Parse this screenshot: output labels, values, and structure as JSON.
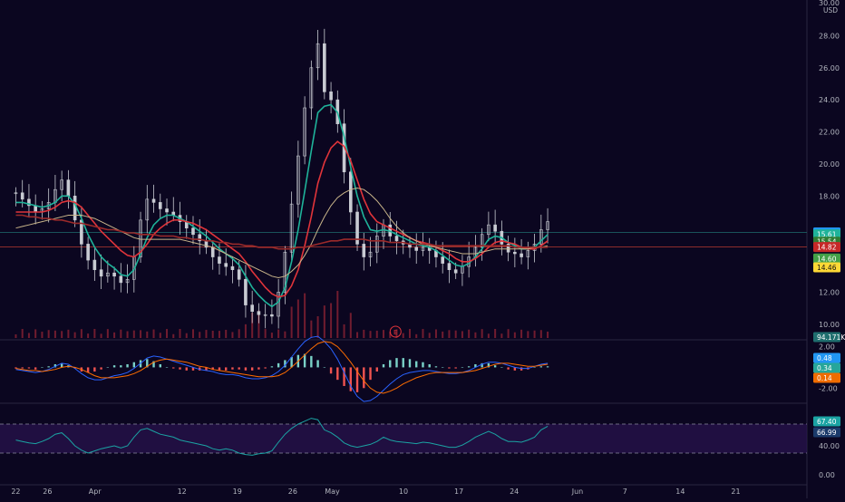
{
  "header": {
    "price_scale_top": "30.00",
    "currency": "USD"
  },
  "colors": {
    "background": "#0b0620",
    "axis_text": "#b2b5be",
    "candle_up": "#c8cbd2",
    "candle_down": "#c8cbd2",
    "ema_fast": "#1fb39a",
    "ema_slow": "#e0343a",
    "sma_long": "#c9b58a",
    "sma_red": "#9b2a2a",
    "volume": "#8a2233",
    "macd_line": "#2962ff",
    "signal_line": "#ff6d00",
    "hist_pos": "#7ad2c8",
    "hist_neg": "#ef5350",
    "rsi_line": "#1ba3a3",
    "rsi_band": "#2a1450"
  },
  "chart_data": [
    {
      "type": "line",
      "panel": "price",
      "yaxis_ticks": [
        "28.00",
        "26.00",
        "24.00",
        "22.00",
        "20.00",
        "18.00",
        "12.00",
        "10.00"
      ],
      "ylim": [
        9.2,
        30
      ],
      "x_labels": [
        "22",
        "26",
        "Apr",
        "12",
        "19",
        "26",
        "May",
        "10",
        "17",
        "24",
        "Jun",
        "7",
        "14",
        "21"
      ],
      "x_label_days": [
        -10,
        -6,
        0,
        11,
        18,
        25,
        30,
        39,
        46,
        53,
        61,
        67,
        74,
        81
      ],
      "xlim": [
        -12,
        90
      ],
      "series": [
        {
          "key": "close",
          "values": [
            18.2,
            17.8,
            17.4,
            17.0,
            17.2,
            17.6,
            18.4,
            19.0,
            18.0,
            16.5,
            15.0,
            14.0,
            13.4,
            13.0,
            13.2,
            13.0,
            12.6,
            12.8,
            14.2,
            16.5,
            17.8,
            17.6,
            17.2,
            17.0,
            16.8,
            16.4,
            16.0,
            15.6,
            15.2,
            14.8,
            14.2,
            13.8,
            13.6,
            13.4,
            12.8,
            11.2,
            10.8,
            10.6,
            10.6,
            10.5,
            12.0,
            14.5,
            17.5,
            20.5,
            23.5,
            26.0,
            27.5,
            24.5,
            24.0,
            22.5,
            19.5,
            17.0,
            15.0,
            14.2,
            14.5,
            15.5,
            16.2,
            15.5,
            15.2,
            15.0,
            14.8,
            14.6,
            14.8,
            14.6,
            14.2,
            13.8,
            13.4,
            13.2,
            13.6,
            14.2,
            14.8,
            15.6,
            16.2,
            15.8,
            15.0,
            14.5,
            14.4,
            14.2,
            14.6,
            15.0,
            15.9,
            16.4
          ]
        },
        {
          "key": "ema_fast",
          "values": [
            17.6,
            17.6,
            17.5,
            17.4,
            17.3,
            17.4,
            17.6,
            18.0,
            18.0,
            17.5,
            16.6,
            15.6,
            14.8,
            14.2,
            13.8,
            13.5,
            13.1,
            13.0,
            13.4,
            14.4,
            15.4,
            16.2,
            16.6,
            16.8,
            16.8,
            16.6,
            16.4,
            16.1,
            15.8,
            15.5,
            15.1,
            14.7,
            14.4,
            14.1,
            13.7,
            13.0,
            12.3,
            11.8,
            11.4,
            11.1,
            11.4,
            12.3,
            13.9,
            15.9,
            18.3,
            20.8,
            23.2,
            23.6,
            23.7,
            23.2,
            21.7,
            19.8,
            18.0,
            16.7,
            15.9,
            15.8,
            15.9,
            15.8,
            15.6,
            15.4,
            15.2,
            15.0,
            14.9,
            14.8,
            14.6,
            14.3,
            14.0,
            13.7,
            13.6,
            13.8,
            14.2,
            14.7,
            15.3,
            15.5,
            15.4,
            15.1,
            14.9,
            14.7,
            14.7,
            14.8,
            15.2,
            15.6
          ]
        },
        {
          "key": "ema_slow",
          "values": [
            17.0,
            17.0,
            17.0,
            17.0,
            17.0,
            17.1,
            17.3,
            17.6,
            17.7,
            17.6,
            17.3,
            16.8,
            16.3,
            15.8,
            15.4,
            15.0,
            14.6,
            14.3,
            14.2,
            14.5,
            15.0,
            15.6,
            16.0,
            16.3,
            16.5,
            16.5,
            16.4,
            16.3,
            16.1,
            15.9,
            15.6,
            15.3,
            15.0,
            14.7,
            14.4,
            13.9,
            13.3,
            12.8,
            12.3,
            11.9,
            11.7,
            11.8,
            12.4,
            13.4,
            14.9,
            16.7,
            18.8,
            20.1,
            21.0,
            21.4,
            21.1,
            20.2,
            19.0,
            17.8,
            16.9,
            16.4,
            16.2,
            16.0,
            15.8,
            15.6,
            15.4,
            15.2,
            15.1,
            15.0,
            14.8,
            14.6,
            14.4,
            14.1,
            13.9,
            13.9,
            14.1,
            14.4,
            14.8,
            15.1,
            15.2,
            15.1,
            15.0,
            14.8,
            14.7,
            14.7,
            14.9,
            15.2
          ]
        },
        {
          "key": "sma_long",
          "values": [
            16.0,
            16.1,
            16.2,
            16.3,
            16.4,
            16.5,
            16.6,
            16.7,
            16.8,
            16.8,
            16.8,
            16.7,
            16.6,
            16.4,
            16.2,
            16.0,
            15.8,
            15.6,
            15.4,
            15.3,
            15.3,
            15.3,
            15.3,
            15.3,
            15.3,
            15.3,
            15.2,
            15.1,
            15.0,
            14.9,
            14.8,
            14.6,
            14.4,
            14.2,
            14.0,
            13.8,
            13.6,
            13.4,
            13.2,
            13.0,
            12.9,
            13.0,
            13.3,
            13.7,
            14.3,
            15.0,
            15.9,
            16.7,
            17.4,
            17.9,
            18.2,
            18.4,
            18.5,
            18.4,
            18.1,
            17.7,
            17.2,
            16.6,
            16.1,
            15.7,
            15.4,
            15.2,
            15.0,
            14.9,
            14.8,
            14.7,
            14.6,
            14.5,
            14.4,
            14.4,
            14.4,
            14.5,
            14.6,
            14.7,
            14.7,
            14.7,
            14.7,
            14.7,
            14.7,
            14.8,
            14.8,
            14.9
          ]
        },
        {
          "key": "sma_red",
          "values": [
            16.8,
            16.8,
            16.7,
            16.7,
            16.6,
            16.6,
            16.5,
            16.5,
            16.4,
            16.3,
            16.3,
            16.2,
            16.1,
            16.0,
            15.9,
            15.9,
            15.8,
            15.7,
            15.7,
            15.6,
            15.6,
            15.6,
            15.5,
            15.5,
            15.5,
            15.4,
            15.4,
            15.3,
            15.3,
            15.2,
            15.2,
            15.1,
            15.1,
            15.0,
            15.0,
            14.9,
            14.9,
            14.8,
            14.8,
            14.8,
            14.7,
            14.7,
            14.7,
            14.8,
            14.8,
            14.9,
            15.0,
            15.1,
            15.2,
            15.2,
            15.3,
            15.3,
            15.3,
            15.3,
            15.2,
            15.2,
            15.2,
            15.1,
            15.1,
            15.1,
            15.0,
            15.0,
            15.0,
            15.0,
            14.9,
            14.9,
            14.9,
            14.9,
            14.9,
            14.9,
            14.9,
            14.9,
            14.9,
            14.9,
            14.9,
            14.9,
            14.8,
            14.8,
            14.8,
            14.8,
            14.8,
            14.8
          ]
        }
      ],
      "price_badges": [
        {
          "label": "15.73",
          "value": 15.73,
          "color": "#2196f3"
        },
        {
          "label": "15.61",
          "value": 15.61,
          "color": "#1fb39a"
        },
        {
          "label": "15.54",
          "value": 15.15,
          "color": "#2e7d32"
        },
        {
          "label": "14.82",
          "value": 14.82,
          "color": "#c62828"
        },
        {
          "label": "14.60",
          "value": 14.1,
          "color": "#43a047"
        },
        {
          "label": "14.46",
          "value": 13.55,
          "color": "#fdd835"
        }
      ],
      "horizontal_lines": [
        15.73,
        14.82
      ],
      "volume_label": "94.171K",
      "earnings_marker": "E",
      "earnings_day": 24
    },
    {
      "type": "line",
      "panel": "macd",
      "yaxis_ticks": [
        "2.00",
        "-2.00"
      ],
      "ylim": [
        -3.2,
        2.4
      ],
      "series": [
        {
          "key": "macd",
          "values": [
            -0.2,
            -0.3,
            -0.4,
            -0.5,
            -0.4,
            -0.2,
            0.1,
            0.4,
            0.3,
            -0.1,
            -0.6,
            -1.0,
            -1.2,
            -1.2,
            -1.0,
            -0.8,
            -0.7,
            -0.5,
            -0.1,
            0.4,
            0.9,
            1.1,
            1.0,
            0.8,
            0.6,
            0.4,
            0.2,
            0.0,
            -0.2,
            -0.3,
            -0.4,
            -0.6,
            -0.7,
            -0.7,
            -0.8,
            -1.0,
            -1.1,
            -1.1,
            -1.0,
            -0.8,
            -0.4,
            0.2,
            1.0,
            1.8,
            2.5,
            2.9,
            3.0,
            2.5,
            1.8,
            0.8,
            -0.5,
            -1.8,
            -2.8,
            -3.3,
            -3.2,
            -2.8,
            -2.2,
            -1.6,
            -1.1,
            -0.7,
            -0.5,
            -0.4,
            -0.3,
            -0.3,
            -0.4,
            -0.5,
            -0.6,
            -0.6,
            -0.5,
            -0.3,
            0.0,
            0.3,
            0.5,
            0.5,
            0.4,
            0.2,
            0.0,
            -0.1,
            -0.1,
            0.1,
            0.3,
            0.4
          ]
        },
        {
          "key": "signal",
          "values": [
            -0.1,
            -0.2,
            -0.3,
            -0.3,
            -0.4,
            -0.3,
            -0.2,
            0.0,
            0.1,
            0.0,
            -0.2,
            -0.5,
            -0.8,
            -1.0,
            -1.0,
            -1.0,
            -0.9,
            -0.8,
            -0.6,
            -0.3,
            0.1,
            0.5,
            0.7,
            0.8,
            0.7,
            0.6,
            0.5,
            0.3,
            0.1,
            0.0,
            -0.2,
            -0.3,
            -0.4,
            -0.5,
            -0.6,
            -0.7,
            -0.8,
            -0.9,
            -0.9,
            -0.9,
            -0.8,
            -0.5,
            0.0,
            0.6,
            1.2,
            1.8,
            2.3,
            2.5,
            2.4,
            2.0,
            1.3,
            0.5,
            -0.4,
            -1.3,
            -2.0,
            -2.4,
            -2.5,
            -2.3,
            -2.0,
            -1.6,
            -1.3,
            -1.0,
            -0.8,
            -0.6,
            -0.5,
            -0.5,
            -0.5,
            -0.5,
            -0.5,
            -0.4,
            -0.3,
            -0.1,
            0.1,
            0.3,
            0.4,
            0.4,
            0.3,
            0.2,
            0.1,
            0.1,
            0.2,
            0.3
          ]
        },
        {
          "key": "histogram",
          "values": [
            -0.1,
            -0.1,
            -0.1,
            -0.2,
            0.0,
            0.1,
            0.3,
            0.4,
            0.2,
            -0.1,
            -0.4,
            -0.5,
            -0.4,
            -0.2,
            0.0,
            0.2,
            0.2,
            0.3,
            0.5,
            0.7,
            0.8,
            0.6,
            0.3,
            0.0,
            -0.1,
            -0.2,
            -0.3,
            -0.3,
            -0.3,
            -0.3,
            -0.2,
            -0.3,
            -0.3,
            -0.2,
            -0.2,
            -0.3,
            -0.3,
            -0.2,
            -0.1,
            0.1,
            0.4,
            0.7,
            1.0,
            1.2,
            1.3,
            1.1,
            0.7,
            0.0,
            -0.6,
            -1.2,
            -1.8,
            -2.3,
            -2.4,
            -2.0,
            -1.2,
            -0.4,
            0.3,
            0.7,
            0.9,
            0.9,
            0.8,
            0.6,
            0.5,
            0.3,
            0.1,
            0.0,
            -0.1,
            -0.1,
            0.0,
            0.1,
            0.3,
            0.4,
            0.4,
            0.2,
            0.0,
            -0.2,
            -0.3,
            -0.3,
            -0.2,
            0.0,
            0.1,
            0.1
          ]
        }
      ],
      "badges": [
        {
          "label": "0.48",
          "color": "#2196f3"
        },
        {
          "label": "0.34",
          "color": "#26a69a"
        },
        {
          "label": "0.14",
          "color": "#ef6c00"
        }
      ]
    },
    {
      "type": "line",
      "panel": "rsi",
      "yaxis_ticks": [
        "40.00",
        "0.00"
      ],
      "ylim": [
        -10,
        95
      ],
      "band": [
        30,
        70
      ],
      "series": [
        {
          "key": "rsi",
          "values": [
            48,
            46,
            44,
            43,
            46,
            50,
            56,
            58,
            50,
            40,
            34,
            30,
            33,
            36,
            38,
            40,
            37,
            40,
            52,
            62,
            64,
            60,
            56,
            54,
            52,
            48,
            46,
            44,
            42,
            40,
            36,
            34,
            36,
            34,
            30,
            28,
            27,
            29,
            30,
            33,
            45,
            56,
            64,
            70,
            74,
            78,
            76,
            62,
            58,
            52,
            44,
            40,
            38,
            40,
            42,
            46,
            52,
            48,
            46,
            45,
            44,
            43,
            45,
            44,
            42,
            40,
            38,
            38,
            41,
            46,
            52,
            56,
            60,
            56,
            50,
            46,
            46,
            45,
            48,
            52,
            62,
            67
          ]
        }
      ],
      "badges": [
        {
          "label": "67.40",
          "color": "#1ba3a3"
        },
        {
          "label": "66.99",
          "color": "#1b3a6a"
        }
      ]
    }
  ]
}
